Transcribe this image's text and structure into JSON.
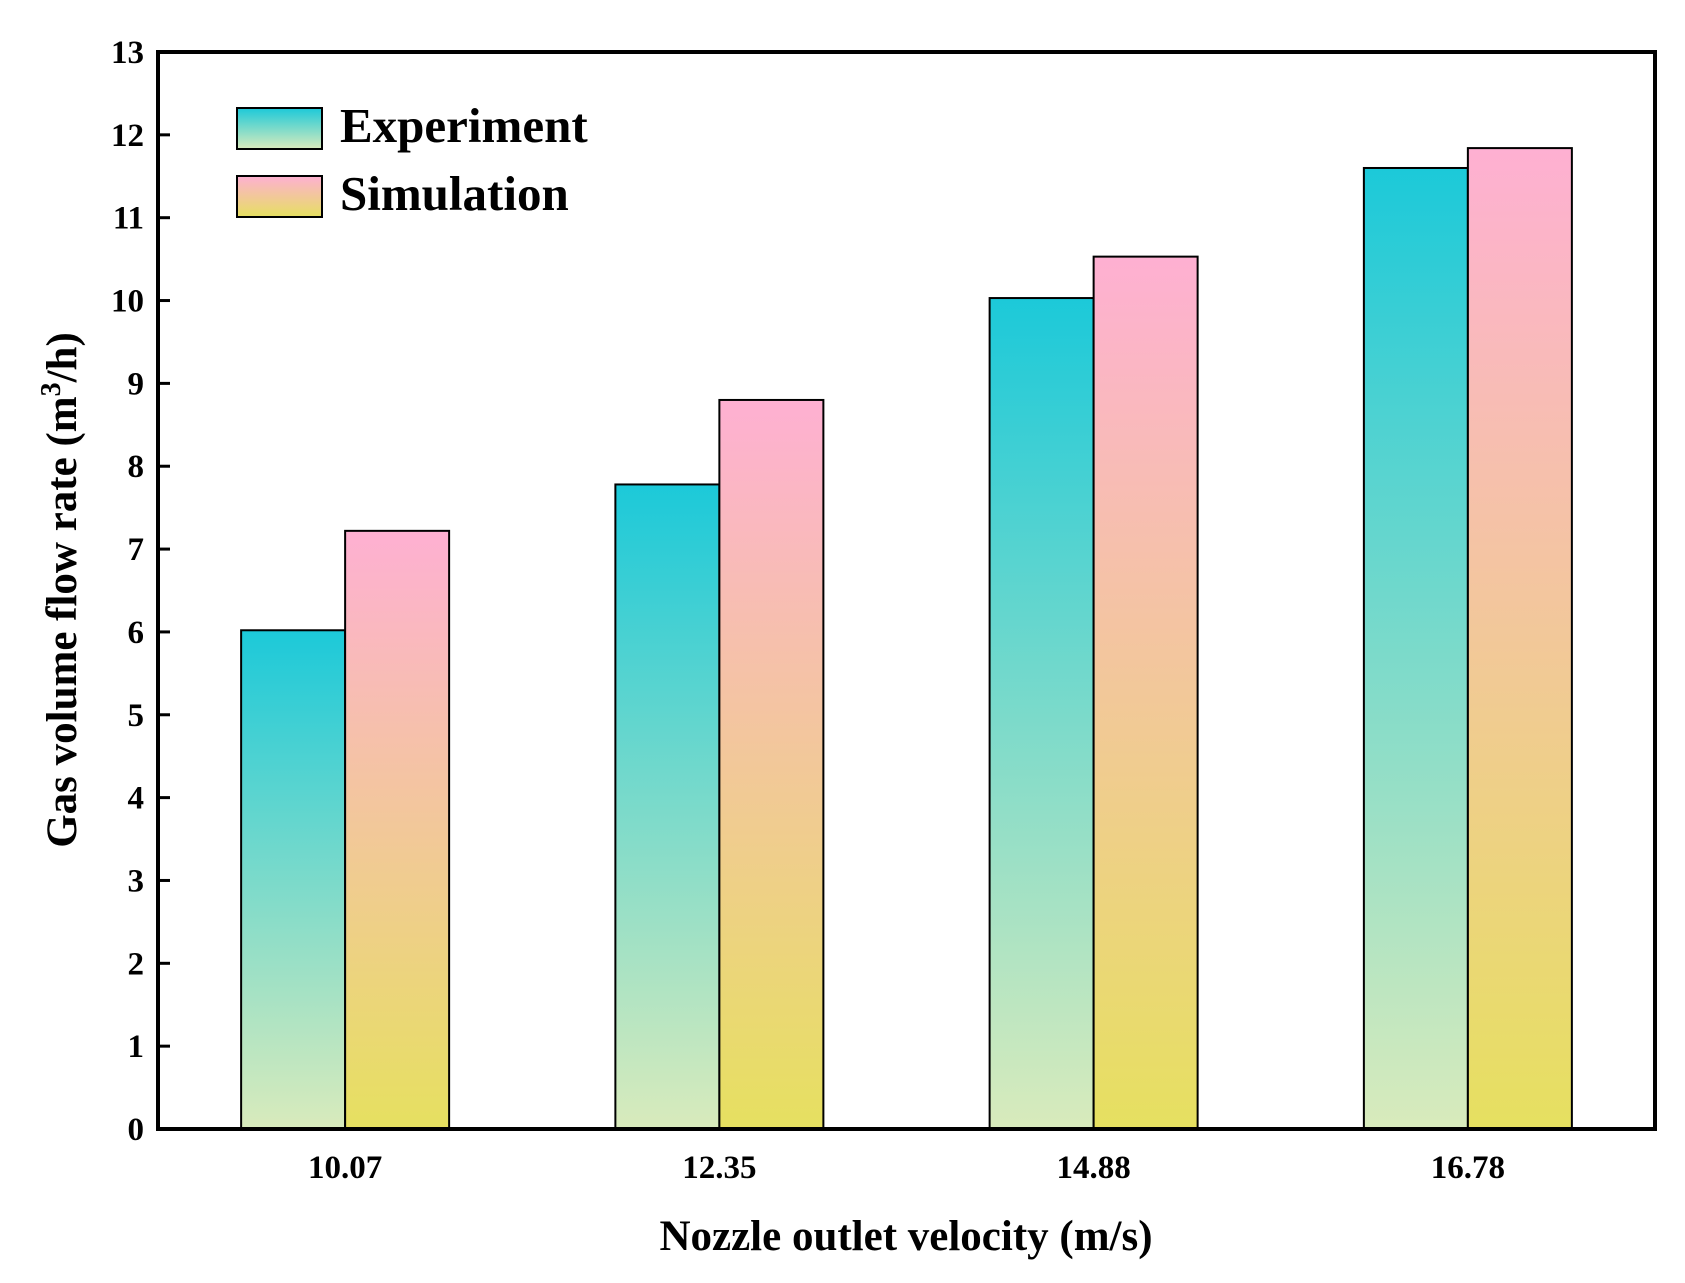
{
  "chart_data": {
    "type": "bar",
    "categories": [
      "10.07",
      "12.35",
      "14.88",
      "16.78"
    ],
    "series": [
      {
        "name": "Experiment",
        "values": [
          6.02,
          7.78,
          10.03,
          11.6
        ],
        "gradient_top": "#1cc9d9",
        "gradient_bottom": "#d9ebbc"
      },
      {
        "name": "Simulation",
        "values": [
          7.22,
          8.8,
          10.53,
          11.84
        ],
        "gradient_top": "#feb0d2",
        "gradient_bottom": "#e6e060"
      }
    ],
    "xlabel": "Nozzle outlet velocity (m/s)",
    "ylabel": {
      "prefix": "Gas volume flow rate (m",
      "superscript": "3",
      "suffix": "/h)"
    },
    "ylim": [
      0,
      13
    ],
    "yticks": [
      "0",
      "1",
      "2",
      "3",
      "4",
      "5",
      "6",
      "7",
      "8",
      "9",
      "10",
      "11",
      "12",
      "13"
    ],
    "grid": false,
    "legend_position": "top-left"
  }
}
